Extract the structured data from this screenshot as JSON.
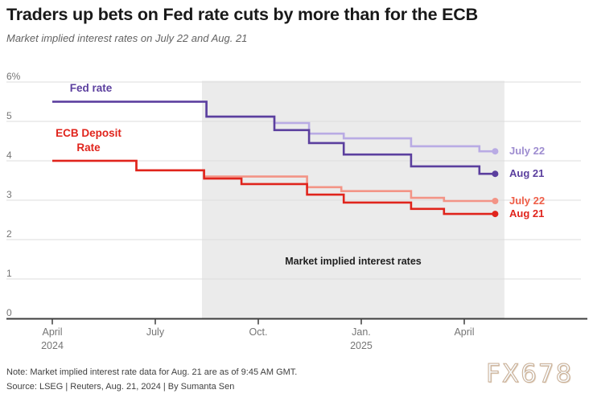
{
  "header": {
    "title": "Traders up bets on Fed rate cuts by more than for the ECB",
    "subtitle": "Market implied interest rates on July 22 and Aug. 21"
  },
  "chart_data": {
    "type": "line",
    "style": "step",
    "title": "Traders up bets on Fed rate cuts by more than for the ECB",
    "subtitle": "Market implied interest rates on July 22 and Aug. 21",
    "x_axis": {
      "unit": "months since April 2024",
      "ticks": [
        {
          "label": "April",
          "sub": "2024",
          "m": 0
        },
        {
          "label": "July",
          "sub": "",
          "m": 3
        },
        {
          "label": "Oct.",
          "sub": "",
          "m": 6
        },
        {
          "label": "Jan.",
          "sub": "2025",
          "m": 9
        },
        {
          "label": "April",
          "sub": "",
          "m": 12
        }
      ]
    },
    "y_axis": {
      "unit": "percent",
      "min": 0,
      "max": 6,
      "tick_labels": [
        "6%",
        "5",
        "4",
        "3",
        "2",
        "1",
        "0"
      ],
      "tick_values": [
        6,
        5,
        4,
        3,
        2,
        1,
        0
      ],
      "gridline_values": [
        6,
        5,
        4,
        3,
        2,
        1
      ]
    },
    "series": [
      {
        "id": "fed-july22",
        "group": "Fed rate",
        "label": "July 22",
        "color": "#b9abe4",
        "label_color": "#9e8dd0",
        "points": [
          [
            0,
            5.5
          ],
          [
            4.49,
            5.12
          ],
          [
            6.47,
            4.96
          ],
          [
            7.48,
            4.69
          ],
          [
            8.49,
            4.57
          ],
          [
            10.45,
            4.37
          ],
          [
            12.44,
            4.24
          ],
          [
            12.9,
            4.24
          ]
        ]
      },
      {
        "id": "fed-aug21",
        "group": "Fed rate",
        "label": "Aug 21",
        "color": "#5b3f9e",
        "label_color": "#5b3f9e",
        "points": [
          [
            0,
            5.5
          ],
          [
            4.49,
            5.12
          ],
          [
            6.47,
            4.78
          ],
          [
            7.48,
            4.45
          ],
          [
            8.49,
            4.16
          ],
          [
            10.45,
            3.86
          ],
          [
            12.44,
            3.67
          ],
          [
            12.9,
            3.67
          ]
        ]
      },
      {
        "id": "ecb-july22",
        "group": "ECB Deposit Rate",
        "label": "July 22",
        "color": "#f39486",
        "label_color": "#ef5f49",
        "points": [
          [
            0,
            4.0
          ],
          [
            2.45,
            3.76
          ],
          [
            4.42,
            3.6
          ],
          [
            7.42,
            3.33
          ],
          [
            8.42,
            3.23
          ],
          [
            10.45,
            3.06
          ],
          [
            11.41,
            2.98
          ],
          [
            12.9,
            2.98
          ]
        ]
      },
      {
        "id": "ecb-aug21",
        "group": "ECB Deposit Rate",
        "label": "Aug 21",
        "color": "#e0241c",
        "label_color": "#e0241c",
        "points": [
          [
            0,
            4.0
          ],
          [
            2.45,
            3.76
          ],
          [
            4.42,
            3.55
          ],
          [
            5.51,
            3.41
          ],
          [
            7.42,
            3.14
          ],
          [
            8.49,
            2.94
          ],
          [
            10.45,
            2.78
          ],
          [
            11.41,
            2.65
          ],
          [
            12.9,
            2.65
          ]
        ]
      }
    ],
    "in_chart_labels": {
      "fed": "Fed rate",
      "ecb": "ECB Deposit\nRate",
      "shaded_region": "Market implied interest rates"
    },
    "shaded_region": {
      "start_m": 4.36,
      "end_m": 13.17
    },
    "legend_position": "right-of-lines",
    "grid": "horizontal-only",
    "colors": {
      "fed_july22": "#b9abe4",
      "fed_aug21": "#5b3f9e",
      "ecb_july22": "#f39486",
      "ecb_aug21": "#e0241c",
      "shade": "#ebebeb",
      "gridline": "#dcdcdc",
      "axis": "#3d3d3d",
      "axis_text": "#757575"
    }
  },
  "footer": {
    "note": "Note: Market implied interest rate data for Aug. 21 are as of 9:45 AM GMT.",
    "source": "Source: LSEG | Reuters, Aug. 21, 2024 | By Sumanta Sen"
  },
  "watermark": "FX678"
}
